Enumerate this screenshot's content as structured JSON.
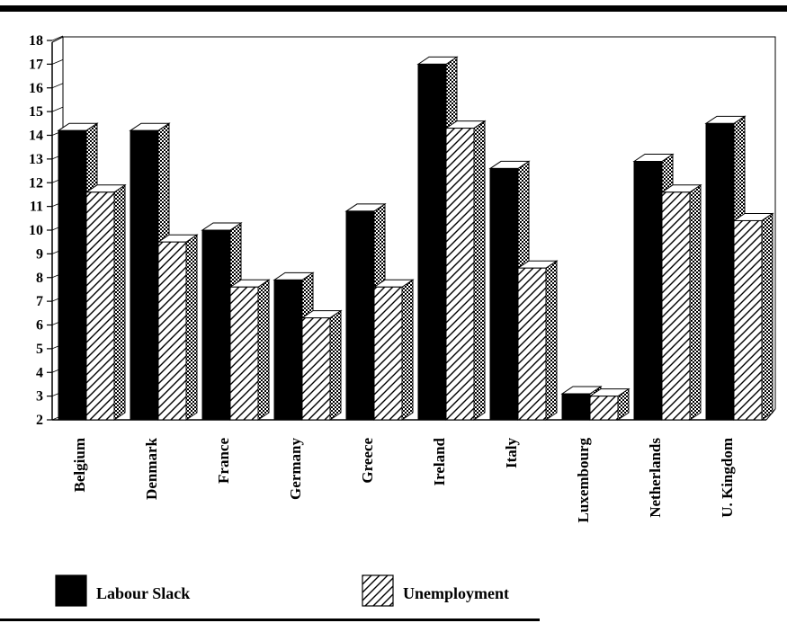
{
  "chart_data": {
    "type": "bar",
    "title": "",
    "xlabel": "",
    "ylabel": "",
    "categories": [
      "Belgium",
      "Denmark",
      "France",
      "Germany",
      "Greece",
      "Ireland",
      "Italy",
      "Luxembourg",
      "Netherlands",
      "U. Kingdom"
    ],
    "series": [
      {
        "name": "Labour Slack",
        "values": [
          14.2,
          14.2,
          10.0,
          7.9,
          10.8,
          17.0,
          12.6,
          3.1,
          12.9,
          14.5
        ],
        "fill": "solid-black"
      },
      {
        "name": "Unemployment",
        "values": [
          11.6,
          9.5,
          7.6,
          6.3,
          7.6,
          14.3,
          8.4,
          3.0,
          11.6,
          10.4
        ],
        "fill": "diagonal-hatch"
      }
    ],
    "ylim": [
      2,
      18
    ],
    "yticks": [
      2,
      3,
      4,
      5,
      6,
      7,
      8,
      9,
      10,
      11,
      12,
      13,
      14,
      15,
      16,
      17,
      18
    ],
    "grid": false,
    "three_d": true,
    "legend_position": "bottom",
    "colors": {
      "solid": "#000000",
      "hatch_line": "#000000",
      "background": "#ffffff"
    }
  }
}
